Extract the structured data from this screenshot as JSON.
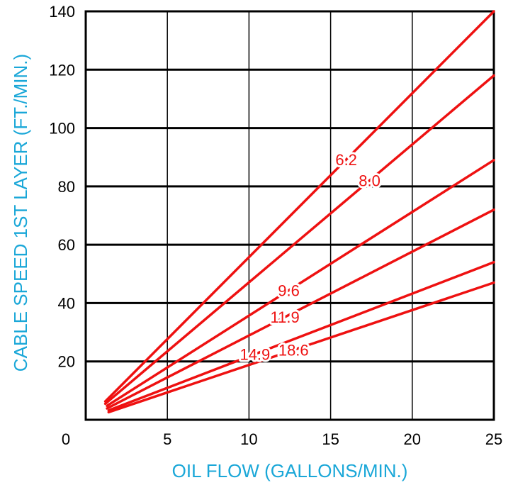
{
  "chart_data": {
    "type": "line",
    "xlabel": "OIL FLOW (GALLONS/MIN.)",
    "ylabel": "CABLE SPEED 1ST LAYER (FT./MIN.)",
    "xlim": [
      0,
      25
    ],
    "ylim": [
      0,
      140
    ],
    "x_ticks": [
      "0",
      "5",
      "10",
      "15",
      "20",
      "25"
    ],
    "y_ticks": [
      "20",
      "40",
      "60",
      "80",
      "100",
      "120",
      "140"
    ],
    "grid": true,
    "legend": "inline labels on lines",
    "series": [
      {
        "name": "6.2",
        "x": [
          1.2,
          25
        ],
        "y": [
          6.3,
          140
        ]
      },
      {
        "name": "8.0",
        "x": [
          1.2,
          25
        ],
        "y": [
          5.5,
          118
        ]
      },
      {
        "name": "9.6",
        "x": [
          1.3,
          25
        ],
        "y": [
          4.8,
          89
        ]
      },
      {
        "name": "11.9",
        "x": [
          1.3,
          25
        ],
        "y": [
          3.9,
          72
        ]
      },
      {
        "name": "14.9",
        "x": [
          1.4,
          25
        ],
        "y": [
          3.2,
          54
        ]
      },
      {
        "name": "18.6",
        "x": [
          1.4,
          25
        ],
        "y": [
          2.6,
          47
        ]
      }
    ]
  },
  "colors": {
    "series": "#ee1111",
    "axis_title": "#1aa7d8",
    "grid": "#000000"
  }
}
